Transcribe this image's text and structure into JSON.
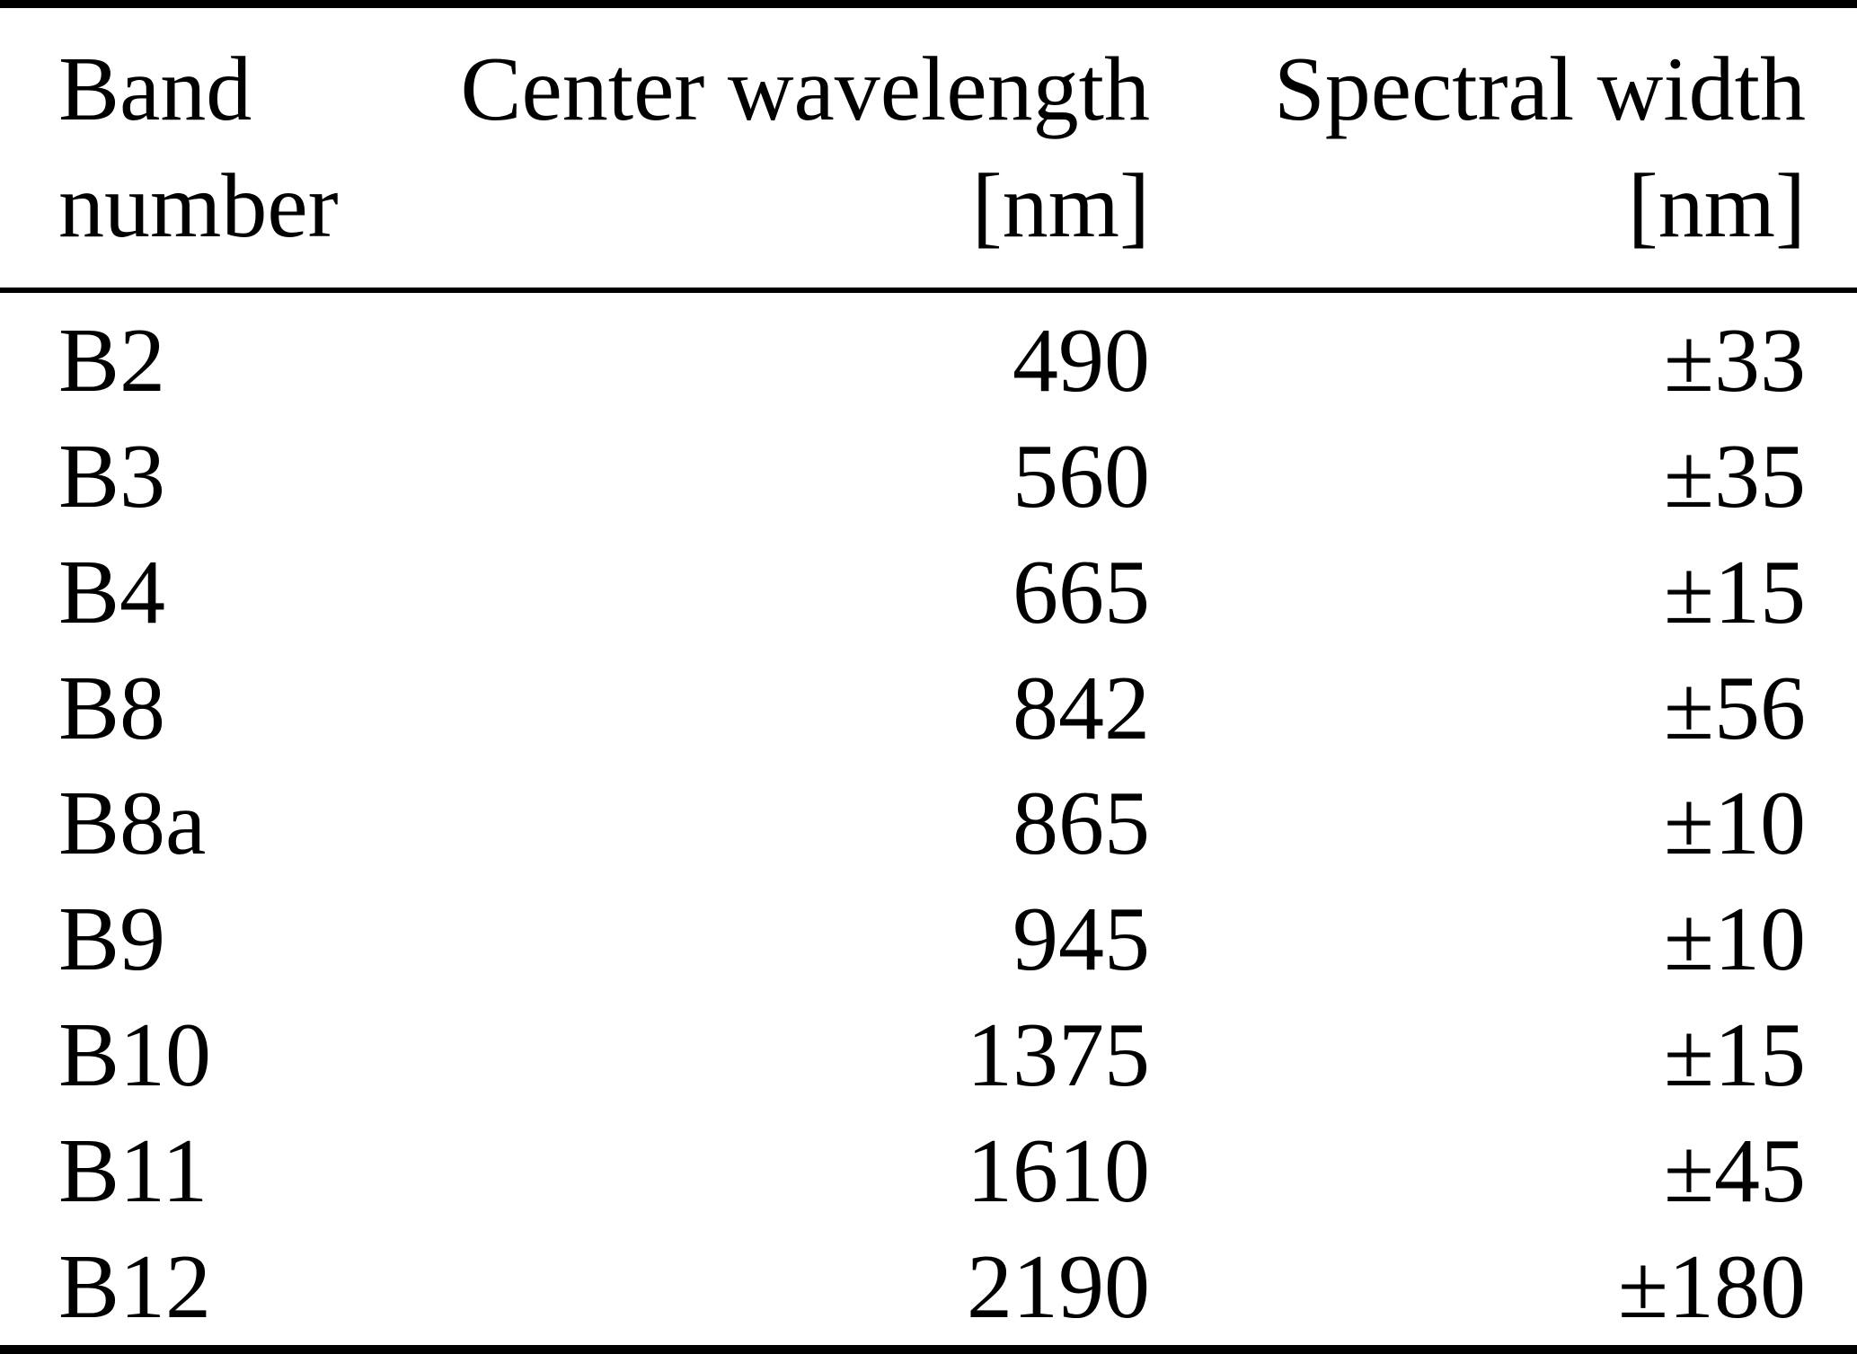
{
  "table": {
    "header": {
      "band": {
        "line1": "Band",
        "line2": "number"
      },
      "center_wavelength": {
        "line1": "Center wavelength",
        "line2": "[nm]"
      },
      "spectral_width": {
        "line1": "Spectral width",
        "line2": "[nm]"
      }
    },
    "rows": [
      {
        "band": "B2",
        "center_wavelength": "490",
        "spectral_width": "±33"
      },
      {
        "band": "B3",
        "center_wavelength": "560",
        "spectral_width": "±35"
      },
      {
        "band": "B4",
        "center_wavelength": "665",
        "spectral_width": "±15"
      },
      {
        "band": "B8",
        "center_wavelength": "842",
        "spectral_width": "±56"
      },
      {
        "band": "B8a",
        "center_wavelength": "865",
        "spectral_width": "±10"
      },
      {
        "band": "B9",
        "center_wavelength": "945",
        "spectral_width": "±10"
      },
      {
        "band": "B10",
        "center_wavelength": "1375",
        "spectral_width": "±15"
      },
      {
        "band": "B11",
        "center_wavelength": "1610",
        "spectral_width": "±45"
      },
      {
        "band": "B12",
        "center_wavelength": "2190",
        "spectral_width": "±180"
      }
    ]
  },
  "chart_data": {
    "type": "table",
    "title": "",
    "columns": [
      "Band number",
      "Center wavelength [nm]",
      "Spectral width [nm]"
    ],
    "rows": [
      [
        "B2",
        490,
        "±33"
      ],
      [
        "B3",
        560,
        "±35"
      ],
      [
        "B4",
        665,
        "±15"
      ],
      [
        "B8",
        842,
        "±56"
      ],
      [
        "B8a",
        865,
        "±10"
      ],
      [
        "B9",
        945,
        "±10"
      ],
      [
        "B10",
        1375,
        "±15"
      ],
      [
        "B11",
        1610,
        "±45"
      ],
      [
        "B12",
        2190,
        "±180"
      ]
    ]
  },
  "colors": {
    "background": "#ffffff",
    "text": "#000000",
    "rule": "#000000"
  }
}
